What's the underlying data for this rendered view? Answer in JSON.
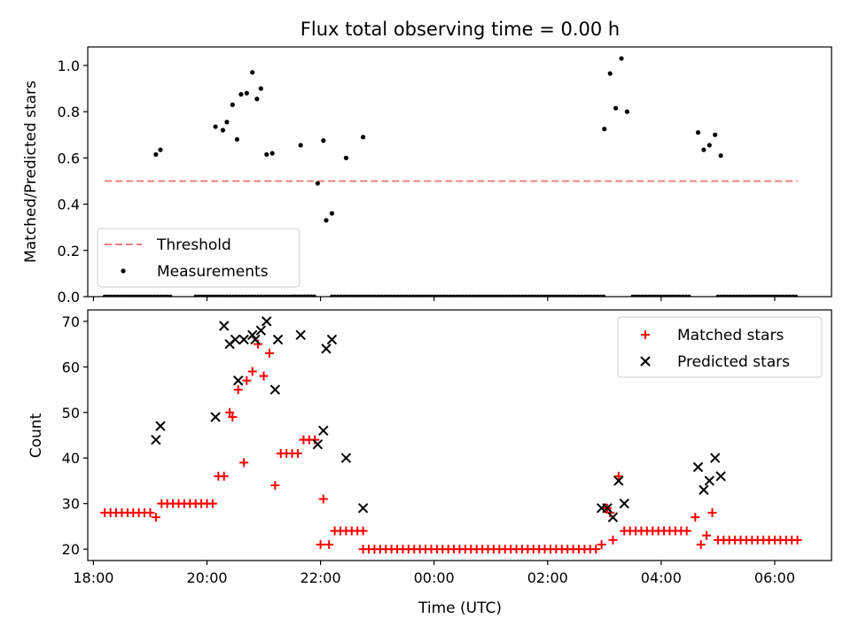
{
  "chart_data": [
    {
      "type": "scatter",
      "title": "Flux total observing time = 0.00 h",
      "xlabel": "",
      "ylabel": "Matched/Predicted stars",
      "xlim": [
        -6.1,
        7.0
      ],
      "ylim": [
        0.0,
        1.08
      ],
      "x_unit": "hours relative to 00:00 UTC",
      "x_ticks": [
        {
          "value": -6,
          "label": "18:00"
        },
        {
          "value": -4,
          "label": "20:00"
        },
        {
          "value": -2,
          "label": "22:00"
        },
        {
          "value": 0,
          "label": "00:00"
        },
        {
          "value": 2,
          "label": "02:00"
        },
        {
          "value": 4,
          "label": "04:00"
        },
        {
          "value": 6,
          "label": "06:00"
        }
      ],
      "y_ticks": [
        {
          "value": 0.0,
          "label": "0.0"
        },
        {
          "value": 0.2,
          "label": "0.2"
        },
        {
          "value": 0.4,
          "label": "0.4"
        },
        {
          "value": 0.6,
          "label": "0.6"
        },
        {
          "value": 0.8,
          "label": "0.8"
        },
        {
          "value": 1.0,
          "label": "1.0"
        }
      ],
      "legend": {
        "placement": "lower-left",
        "entries": [
          "Threshold",
          "Measurements"
        ]
      },
      "colors": {
        "threshold": "#f08080",
        "measurements": "#000000"
      },
      "threshold": {
        "name": "Threshold",
        "value": 0.5,
        "x_range": [
          -5.8,
          6.4
        ]
      },
      "series": [
        {
          "name": "Measurements",
          "points": [
            [
              -4.9,
              0.615
            ],
            [
              -4.82,
              0.635
            ],
            [
              -3.85,
              0.735
            ],
            [
              -3.72,
              0.72
            ],
            [
              -3.65,
              0.755
            ],
            [
              -3.55,
              0.83
            ],
            [
              -3.47,
              0.68
            ],
            [
              -3.4,
              0.875
            ],
            [
              -3.3,
              0.88
            ],
            [
              -3.2,
              0.97
            ],
            [
              -3.12,
              0.855
            ],
            [
              -3.05,
              0.9
            ],
            [
              -2.95,
              0.615
            ],
            [
              -2.85,
              0.62
            ],
            [
              -2.35,
              0.655
            ],
            [
              -2.05,
              0.49
            ],
            [
              -1.95,
              0.675
            ],
            [
              -1.9,
              0.33
            ],
            [
              -1.8,
              0.36
            ],
            [
              -1.55,
              0.6
            ],
            [
              -1.25,
              0.69
            ],
            [
              3.0,
              0.725
            ],
            [
              3.1,
              0.965
            ],
            [
              3.2,
              0.815
            ],
            [
              3.3,
              1.03
            ],
            [
              3.4,
              0.8
            ],
            [
              4.65,
              0.71
            ],
            [
              4.75,
              0.635
            ],
            [
              4.85,
              0.655
            ],
            [
              4.95,
              0.7
            ],
            [
              5.05,
              0.61
            ]
          ],
          "zero_segments": [
            [
              -5.8,
              -4.6
            ],
            [
              -4.2,
              -2.1
            ],
            [
              -2.5,
              -2.1
            ],
            [
              -1.8,
              3.0
            ],
            [
              3.5,
              4.5
            ],
            [
              5.0,
              6.4
            ]
          ]
        }
      ]
    },
    {
      "type": "scatter",
      "title": "",
      "xlabel": "Time (UTC)",
      "ylabel": "Count",
      "xlim": [
        -6.1,
        7.0
      ],
      "ylim": [
        17.5,
        72.5
      ],
      "x_unit": "hours relative to 00:00 UTC",
      "x_ticks": [
        {
          "value": -6,
          "label": "18:00"
        },
        {
          "value": -4,
          "label": "20:00"
        },
        {
          "value": -2,
          "label": "22:00"
        },
        {
          "value": 0,
          "label": "00:00"
        },
        {
          "value": 2,
          "label": "02:00"
        },
        {
          "value": 4,
          "label": "04:00"
        },
        {
          "value": 6,
          "label": "06:00"
        }
      ],
      "y_ticks": [
        {
          "value": 20,
          "label": "20"
        },
        {
          "value": 30,
          "label": "30"
        },
        {
          "value": 40,
          "label": "40"
        },
        {
          "value": 50,
          "label": "50"
        },
        {
          "value": 60,
          "label": "60"
        },
        {
          "value": 70,
          "label": "70"
        }
      ],
      "legend": {
        "placement": "top-right",
        "entries": [
          "Matched stars",
          "Predicted stars"
        ]
      },
      "colors": {
        "matched": "#ff0000",
        "predicted": "#000000"
      },
      "series": [
        {
          "name": "Matched stars",
          "marker": "plus",
          "points": [
            [
              -4.9,
              27
            ],
            [
              -3.8,
              36
            ],
            [
              -3.7,
              36
            ],
            [
              -3.6,
              50
            ],
            [
              -3.55,
              49
            ],
            [
              -3.45,
              55
            ],
            [
              -3.35,
              39
            ],
            [
              -3.3,
              57
            ],
            [
              -3.2,
              59
            ],
            [
              -3.1,
              65
            ],
            [
              -3.0,
              58
            ],
            [
              -2.9,
              63
            ],
            [
              -2.8,
              34
            ],
            [
              -2.7,
              41
            ],
            [
              -2.6,
              41
            ],
            [
              -2.5,
              41
            ],
            [
              -2.4,
              41
            ],
            [
              -2.3,
              44
            ],
            [
              -2.2,
              44
            ],
            [
              -2.1,
              44
            ],
            [
              -2.0,
              21
            ],
            [
              -1.95,
              31
            ],
            [
              -1.85,
              21
            ],
            [
              -1.75,
              24
            ],
            [
              -1.65,
              24
            ],
            [
              -1.55,
              24
            ],
            [
              -1.45,
              24
            ],
            [
              -1.35,
              24
            ],
            [
              -1.25,
              24
            ],
            [
              2.85,
              20
            ],
            [
              2.95,
              21
            ],
            [
              3.05,
              29
            ],
            [
              3.1,
              28
            ],
            [
              3.15,
              22
            ],
            [
              3.25,
              36
            ],
            [
              3.35,
              24
            ],
            [
              4.6,
              27
            ],
            [
              4.7,
              21
            ],
            [
              4.8,
              23
            ],
            [
              4.9,
              28
            ]
          ],
          "runs": [
            {
              "x_from": -5.8,
              "x_to": -4.95,
              "step": 0.1,
              "y": 28
            },
            {
              "x_from": -4.8,
              "x_to": -3.9,
              "step": 0.1,
              "y": 30
            },
            {
              "x_from": -1.25,
              "x_to": 2.8,
              "step": 0.1,
              "y": 20
            },
            {
              "x_from": 3.45,
              "x_to": 4.5,
              "step": 0.1,
              "y": 24
            },
            {
              "x_from": 5.0,
              "x_to": 6.4,
              "step": 0.1,
              "y": 22
            }
          ]
        },
        {
          "name": "Predicted stars",
          "marker": "x",
          "points": [
            [
              -4.9,
              44
            ],
            [
              -4.82,
              47
            ],
            [
              -3.85,
              49
            ],
            [
              -3.7,
              69
            ],
            [
              -3.6,
              65
            ],
            [
              -3.5,
              66
            ],
            [
              -3.45,
              57
            ],
            [
              -3.35,
              66
            ],
            [
              -3.2,
              67
            ],
            [
              -3.15,
              66
            ],
            [
              -3.05,
              68
            ],
            [
              -2.95,
              70
            ],
            [
              -2.8,
              55
            ],
            [
              -2.75,
              66
            ],
            [
              -2.35,
              67
            ],
            [
              -2.05,
              43
            ],
            [
              -1.95,
              46
            ],
            [
              -1.9,
              64
            ],
            [
              -1.8,
              66
            ],
            [
              -1.55,
              40
            ],
            [
              -1.25,
              29
            ],
            [
              2.95,
              29
            ],
            [
              3.05,
              29
            ],
            [
              3.15,
              27
            ],
            [
              3.25,
              35
            ],
            [
              3.35,
              30
            ],
            [
              4.65,
              38
            ],
            [
              4.75,
              33
            ],
            [
              4.85,
              35
            ],
            [
              4.95,
              40
            ],
            [
              5.05,
              36
            ]
          ]
        }
      ]
    }
  ]
}
